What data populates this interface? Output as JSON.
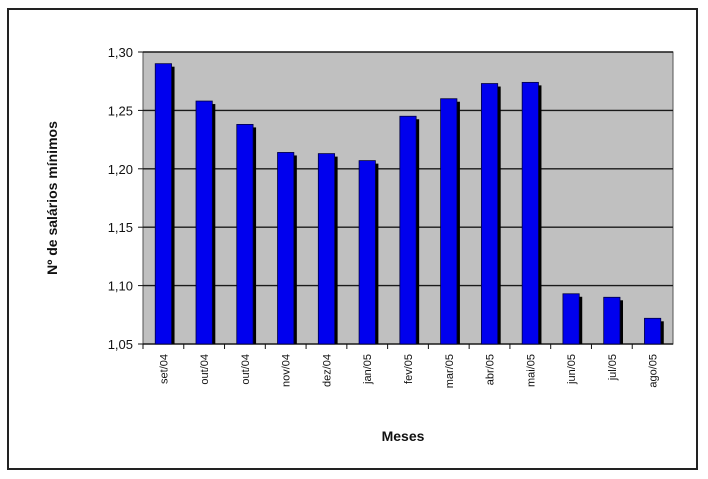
{
  "chart_data": {
    "type": "bar",
    "title": "",
    "xlabel": "Meses",
    "ylabel": "Nº de salários mínimos",
    "ylim": [
      1.05,
      1.3
    ],
    "yticks": [
      "1,30",
      "1,25",
      "1,20",
      "1,15",
      "1,10",
      "1,05"
    ],
    "ytick_values": [
      1.3,
      1.25,
      1.2,
      1.15,
      1.1,
      1.05
    ],
    "grid": true,
    "categories": [
      "set/04",
      "out/04",
      "out/04",
      "nov/04",
      "dez/04",
      "jan/05",
      "fev/05",
      "mar/05",
      "abr/05",
      "mai/05",
      "jun/05",
      "jul/05",
      "ago/05"
    ],
    "values": [
      1.29,
      1.258,
      1.238,
      1.214,
      1.213,
      1.207,
      1.245,
      1.26,
      1.273,
      1.274,
      1.093,
      1.09,
      1.072
    ],
    "colors": {
      "bar": "#0000ee",
      "plot_bg": "#c0c0c0",
      "grid": "#1a1a1a"
    }
  }
}
